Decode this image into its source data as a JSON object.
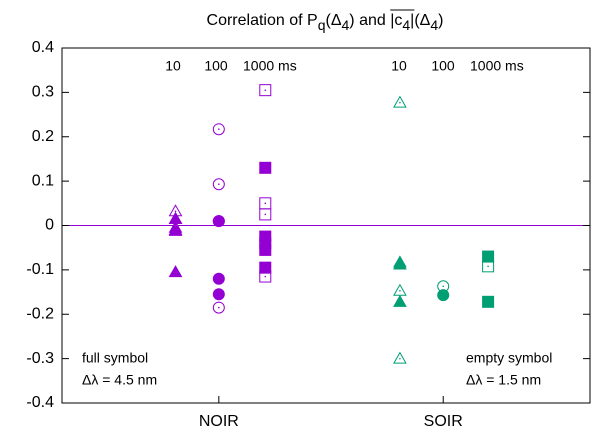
{
  "chart_data": {
    "type": "scatter",
    "title": [
      "Correlation of P",
      "q",
      "(Δ",
      "4",
      ") and ",
      "|c",
      "4",
      "|",
      "(Δ",
      "4",
      ")"
    ],
    "xlim": [
      0,
      10
    ],
    "ylim": [
      -0.4,
      0.4
    ],
    "xticks": [
      {
        "value": 2.97,
        "label": "NOIR"
      },
      {
        "value": 7.22,
        "label": "SOIR"
      }
    ],
    "yticks": [
      -0.4,
      -0.3,
      -0.2,
      -0.1,
      0,
      0.1,
      0.2,
      0.3,
      0.4
    ],
    "zeroline": {
      "color": "#9400d3"
    },
    "annotations": [
      "10",
      "100",
      "1000 ms",
      "10",
      "100",
      "1000 ms",
      "full symbol",
      "Δλ = 4.5 nm",
      "empty symbol",
      "Δλ = 1.5 nm"
    ],
    "series": [
      {
        "marker": "triangle",
        "filled": true,
        "color": "#9400d3",
        "x": [
          2.15,
          2.15,
          2.15,
          2.15
        ],
        "values": [
          0.015,
          -0.005,
          -0.012,
          -0.105
        ]
      },
      {
        "marker": "triangle",
        "filled": false,
        "color": "#9400d3",
        "x": [
          2.15,
          2.15,
          2.15
        ],
        "values": [
          0.032,
          0.015,
          -0.01
        ]
      },
      {
        "marker": "circle",
        "filled": true,
        "color": "#9400d3",
        "x": [
          2.97,
          2.97,
          2.97
        ],
        "values": [
          0.01,
          -0.12,
          -0.155
        ]
      },
      {
        "marker": "circle",
        "filled": false,
        "color": "#9400d3",
        "x": [
          2.97,
          2.97,
          2.97,
          2.97
        ],
        "values": [
          0.217,
          0.093,
          0.01,
          -0.185
        ]
      },
      {
        "marker": "square",
        "filled": true,
        "color": "#9400d3",
        "x": [
          3.85,
          3.85,
          3.85,
          3.85,
          3.85
        ],
        "values": [
          0.13,
          -0.025,
          -0.04,
          -0.055,
          -0.095
        ]
      },
      {
        "marker": "square",
        "filled": false,
        "color": "#9400d3",
        "x": [
          3.85,
          3.85,
          3.85,
          3.85
        ],
        "values": [
          0.305,
          0.05,
          0.025,
          -0.115
        ]
      },
      {
        "marker": "triangle",
        "filled": true,
        "color": "#009e73",
        "x": [
          6.4,
          6.4,
          6.4
        ],
        "values": [
          -0.083,
          -0.088,
          -0.172
        ]
      },
      {
        "marker": "triangle",
        "filled": false,
        "color": "#009e73",
        "x": [
          6.4,
          6.4,
          6.4
        ],
        "values": [
          0.277,
          -0.147,
          -0.3
        ]
      },
      {
        "marker": "circle",
        "filled": true,
        "color": "#009e73",
        "x": [
          7.22
        ],
        "values": [
          -0.157
        ]
      },
      {
        "marker": "circle",
        "filled": false,
        "color": "#009e73",
        "x": [
          7.22
        ],
        "values": [
          -0.137
        ]
      },
      {
        "marker": "square",
        "filled": true,
        "color": "#009e73",
        "x": [
          8.07,
          8.07
        ],
        "values": [
          -0.07,
          -0.172
        ]
      },
      {
        "marker": "square",
        "filled": false,
        "color": "#009e73",
        "x": [
          8.07
        ],
        "values": [
          -0.092
        ]
      }
    ]
  }
}
